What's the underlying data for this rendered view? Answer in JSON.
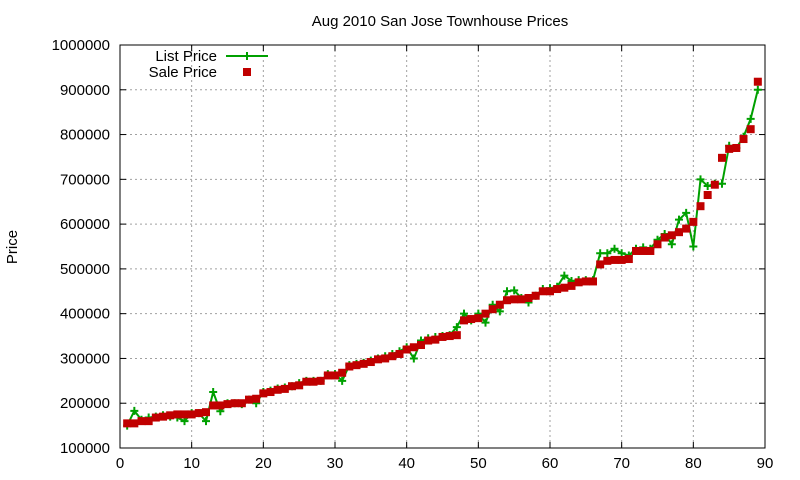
{
  "chart_data": {
    "type": "line",
    "title": "Aug 2010 San Jose Townhouse Prices",
    "xlabel": "",
    "ylabel": "Price",
    "xlim": [
      0,
      90
    ],
    "ylim": [
      100000,
      1000000
    ],
    "xticks": [
      "0",
      "10",
      "20",
      "30",
      "40",
      "50",
      "60",
      "70",
      "80",
      "90"
    ],
    "yticks": [
      "100000",
      "200000",
      "300000",
      "400000",
      "500000",
      "600000",
      "700000",
      "800000",
      "900000",
      "1000000"
    ],
    "grid": true,
    "legend_position": "top-left",
    "series": [
      {
        "name": "List Price",
        "style": "line+crosses",
        "color": "#00a000",
        "x": [
          1,
          2,
          3,
          4,
          5,
          6,
          7,
          8,
          9,
          10,
          11,
          12,
          13,
          14,
          15,
          16,
          17,
          18,
          19,
          20,
          21,
          22,
          23,
          24,
          25,
          26,
          27,
          28,
          29,
          30,
          31,
          32,
          33,
          34,
          35,
          36,
          37,
          38,
          39,
          40,
          41,
          42,
          43,
          44,
          45,
          46,
          47,
          48,
          49,
          50,
          51,
          52,
          53,
          54,
          55,
          56,
          57,
          58,
          59,
          60,
          61,
          62,
          63,
          64,
          65,
          66,
          67,
          68,
          69,
          70,
          71,
          72,
          73,
          74,
          75,
          76,
          77,
          78,
          79,
          80,
          81,
          82,
          83,
          84,
          85,
          86,
          87,
          88,
          89
        ],
        "values": [
          150000,
          183000,
          163000,
          168000,
          170000,
          173000,
          170000,
          168000,
          160000,
          178000,
          178000,
          160000,
          225000,
          182000,
          200000,
          200000,
          198000,
          208000,
          200000,
          225000,
          228000,
          233000,
          235000,
          238000,
          245000,
          250000,
          250000,
          250000,
          265000,
          265000,
          250000,
          285000,
          288000,
          290000,
          295000,
          300000,
          305000,
          310000,
          316000,
          325000,
          300000,
          340000,
          345000,
          348000,
          350000,
          352000,
          370000,
          400000,
          385000,
          400000,
          380000,
          420000,
          405000,
          450000,
          452000,
          435000,
          425000,
          440000,
          455000,
          457000,
          460000,
          485000,
          473000,
          475000,
          475000,
          475000,
          535000,
          535000,
          545000,
          535000,
          530000,
          545000,
          548000,
          545000,
          565000,
          578000,
          555000,
          610000,
          625000,
          550000,
          700000,
          685000,
          690000,
          690000,
          775000,
          770000,
          795000,
          835000,
          900000
        ]
      },
      {
        "name": "Sale Price",
        "style": "points",
        "color": "#c00000",
        "x": [
          1,
          2,
          3,
          4,
          5,
          6,
          7,
          8,
          9,
          10,
          11,
          12,
          13,
          14,
          15,
          16,
          17,
          18,
          19,
          20,
          21,
          22,
          23,
          24,
          25,
          26,
          27,
          28,
          29,
          30,
          31,
          32,
          33,
          34,
          35,
          36,
          37,
          38,
          39,
          40,
          41,
          42,
          43,
          44,
          45,
          46,
          47,
          48,
          49,
          50,
          51,
          52,
          53,
          54,
          55,
          56,
          57,
          58,
          59,
          60,
          61,
          62,
          63,
          64,
          65,
          66,
          67,
          68,
          69,
          70,
          71,
          72,
          73,
          74,
          75,
          76,
          77,
          78,
          79,
          80,
          81,
          82,
          83,
          84,
          85,
          86,
          87,
          88,
          89
        ],
        "values": [
          155000,
          155000,
          160000,
          160000,
          168000,
          170000,
          173000,
          175000,
          175000,
          175000,
          178000,
          180000,
          195000,
          195000,
          198000,
          200000,
          200000,
          208000,
          210000,
          222000,
          225000,
          230000,
          232000,
          238000,
          240000,
          248000,
          248000,
          250000,
          262000,
          262000,
          268000,
          282000,
          285000,
          288000,
          292000,
          298000,
          300000,
          305000,
          310000,
          320000,
          325000,
          330000,
          340000,
          342000,
          348000,
          350000,
          352000,
          385000,
          388000,
          390000,
          400000,
          410000,
          420000,
          430000,
          432000,
          432000,
          435000,
          440000,
          450000,
          450000,
          455000,
          458000,
          462000,
          470000,
          472000,
          472000,
          510000,
          518000,
          520000,
          520000,
          522000,
          540000,
          540000,
          540000,
          555000,
          570000,
          575000,
          582000,
          590000,
          605000,
          640000,
          665000,
          688000,
          748000,
          768000,
          770000,
          790000,
          812000,
          918000
        ]
      }
    ]
  }
}
